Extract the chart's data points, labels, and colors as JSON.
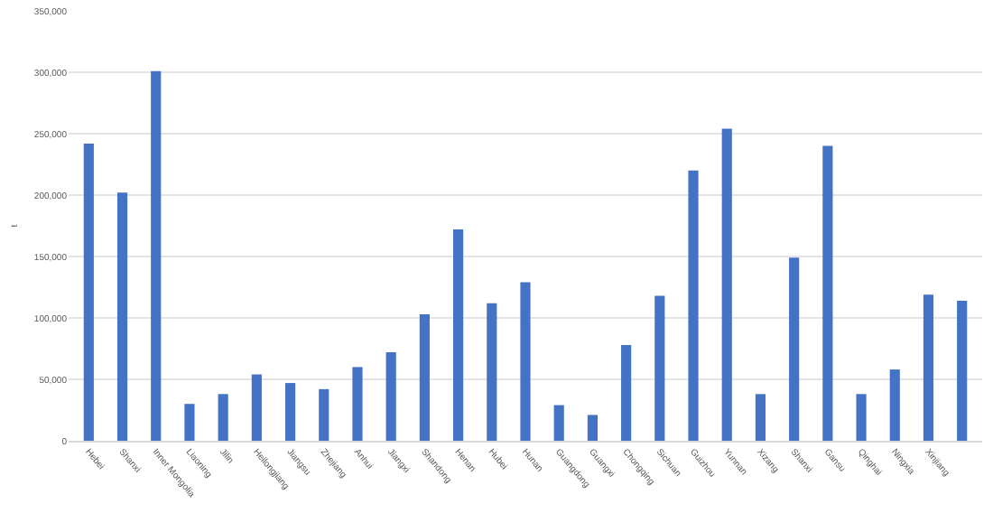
{
  "chart_data": {
    "type": "bar",
    "ylabel": "t",
    "categories": [
      "Hebei",
      "Shanxi",
      "Inner Mongolia",
      "Liaoning",
      "Jilin",
      "Heilongjiang",
      "Jiangsu",
      "Zhejiang",
      "Anhui",
      "Jiangxi",
      "Shandong",
      "Henan",
      "Hubei",
      "Hunan",
      "Guangdong",
      "Guangxi",
      "Chongqing",
      "Sichuan",
      "Guizhou",
      "Yunnan",
      "Xizang",
      "Shanxi",
      "Gansu",
      "Qinghai",
      "Ningxia",
      "Xinjiang",
      null
    ],
    "values": [
      242000,
      202000,
      301000,
      30000,
      38000,
      54000,
      47000,
      42000,
      60000,
      72000,
      103000,
      172000,
      112000,
      129000,
      29000,
      21000,
      78000,
      118000,
      220000,
      254000,
      38000,
      149000,
      240000,
      38000,
      58000,
      119000,
      114000
    ],
    "color": "#4472c4",
    "ylim": [
      0,
      350000
    ],
    "yticks": [
      {
        "value": 0,
        "label": "0"
      },
      {
        "value": 50000,
        "label": "50,000"
      },
      {
        "value": 100000,
        "label": "100,000"
      },
      {
        "value": 150000,
        "label": "150,000"
      },
      {
        "value": 200000,
        "label": "200,000"
      },
      {
        "value": 250000,
        "label": "250,000"
      },
      {
        "value": 300000,
        "label": "300,000"
      },
      {
        "value": 350000,
        "label": "350,000"
      }
    ],
    "grid": "y",
    "legend": false
  }
}
